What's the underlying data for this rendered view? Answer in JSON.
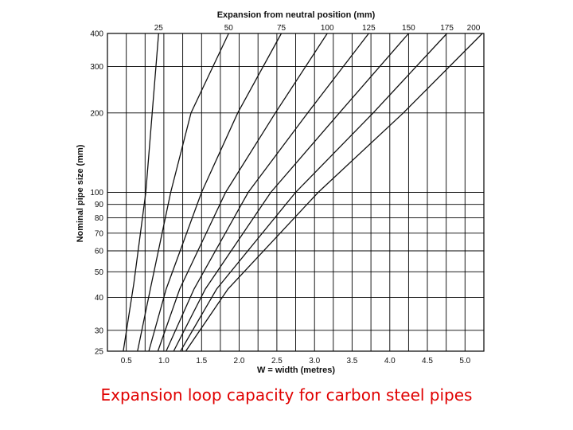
{
  "caption": "Expansion loop capacity for carbon steel pipes",
  "chart_data": {
    "type": "line",
    "top_axis_title": "Expansion from neutral position (mm)",
    "xlabel": "W = width (metres)",
    "ylabel": "Nominal pipe size (mm)",
    "y_scale": "log",
    "xlim": [
      0.25,
      5.25
    ],
    "ylim": [
      25,
      400
    ],
    "x_ticks": [
      "0.5",
      "1.0",
      "1.5",
      "2.0",
      "2.5",
      "3.0",
      "3.5",
      "4.0",
      "4.5",
      "5.0"
    ],
    "x_tick_values": [
      0.5,
      1.0,
      1.5,
      2.0,
      2.5,
      3.0,
      3.5,
      4.0,
      4.5,
      5.0
    ],
    "y_ticks": [
      "25",
      "30",
      "40",
      "50",
      "60",
      "70",
      "80",
      "90",
      "100",
      "200",
      "300",
      "400"
    ],
    "y_tick_values": [
      25,
      30,
      40,
      50,
      60,
      70,
      80,
      90,
      100,
      200,
      300,
      400
    ],
    "grid": true,
    "colors": {
      "line": "#111111",
      "grid": "#000000",
      "caption": "#e00000"
    },
    "series": [
      {
        "name": "25",
        "points": [
          [
            0.46,
            25
          ],
          [
            0.6,
            45
          ],
          [
            0.76,
            100
          ],
          [
            0.93,
            400
          ]
        ]
      },
      {
        "name": "50",
        "points": [
          [
            0.65,
            25
          ],
          [
            0.82,
            43
          ],
          [
            1.09,
            100
          ],
          [
            1.36,
            200
          ],
          [
            1.86,
            400
          ]
        ]
      },
      {
        "name": "75",
        "points": [
          [
            0.8,
            25
          ],
          [
            1.03,
            43
          ],
          [
            1.5,
            100
          ],
          [
            1.98,
            200
          ],
          [
            2.56,
            400
          ]
        ]
      },
      {
        "name": "100",
        "points": [
          [
            0.92,
            25
          ],
          [
            1.21,
            43
          ],
          [
            1.82,
            100
          ],
          [
            2.48,
            200
          ],
          [
            3.17,
            400
          ]
        ]
      },
      {
        "name": "125",
        "points": [
          [
            1.03,
            25
          ],
          [
            1.4,
            43
          ],
          [
            2.12,
            100
          ],
          [
            2.91,
            200
          ],
          [
            3.72,
            400
          ]
        ]
      },
      {
        "name": "150",
        "points": [
          [
            1.13,
            25
          ],
          [
            1.55,
            43
          ],
          [
            2.42,
            100
          ],
          [
            3.33,
            200
          ],
          [
            4.25,
            400
          ]
        ]
      },
      {
        "name": "175",
        "points": [
          [
            1.22,
            25
          ],
          [
            1.7,
            43
          ],
          [
            2.75,
            100
          ],
          [
            3.78,
            200
          ],
          [
            4.76,
            400
          ]
        ]
      },
      {
        "name": "200",
        "points": [
          [
            1.29,
            25
          ],
          [
            1.85,
            43
          ],
          [
            3.05,
            100
          ],
          [
            4.18,
            200
          ],
          [
            5.23,
            400
          ]
        ]
      }
    ]
  }
}
